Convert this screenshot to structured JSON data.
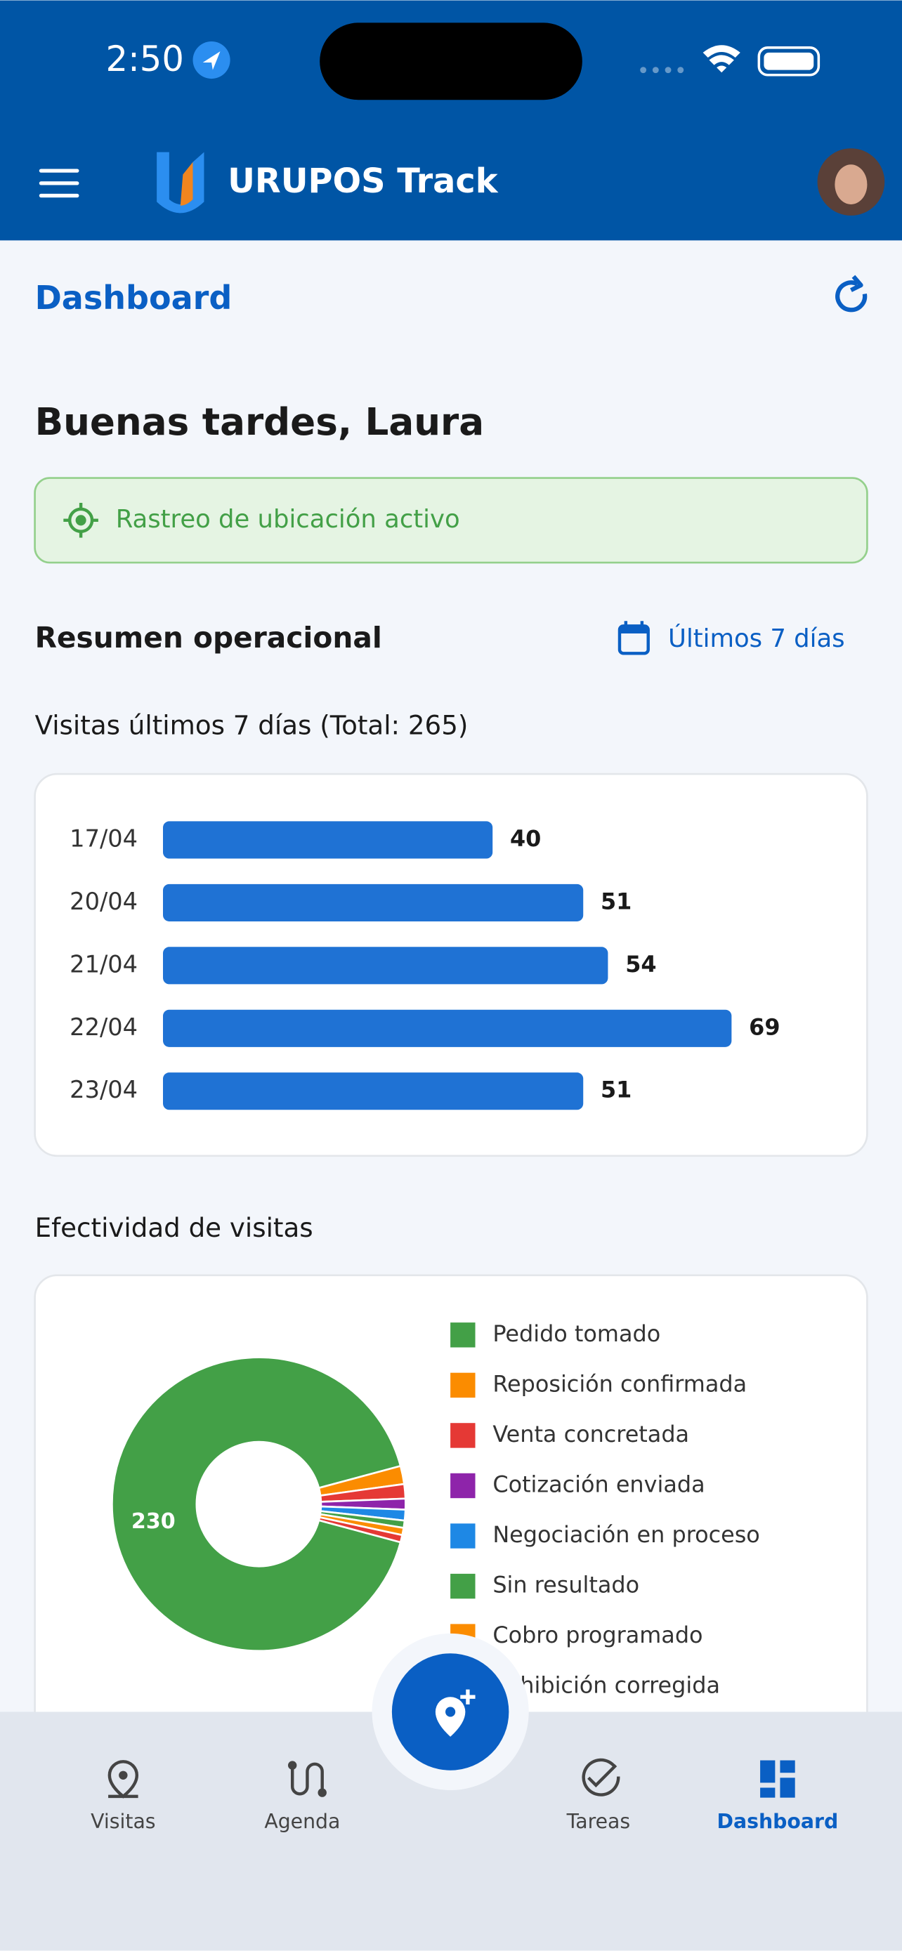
{
  "header": {
    "time": "2:50",
    "app_title": "URUPOS Track"
  },
  "page": {
    "title": "Dashboard",
    "greeting": "Buenas tardes, Laura",
    "tracking": "Rastreo de ubicación activo",
    "section_title": "Resumen operacional",
    "range": "Últimos 7 días"
  },
  "chart_data": [
    {
      "type": "bar",
      "title": "Visitas últimos 7 días (Total: 265)",
      "categories": [
        "17/04",
        "20/04",
        "21/04",
        "22/04",
        "23/04"
      ],
      "values": [
        40,
        51,
        54,
        69,
        51
      ],
      "color": "#1f72d4"
    },
    {
      "type": "pie",
      "title": "Efectividad de visitas",
      "categories": [
        "Pedido tomado",
        "Reposición confirmada",
        "Venta concretada",
        "Cotización enviada",
        "Negociación en proceso",
        "Sin resultado",
        "Cobro programado",
        "Exhibición corregida"
      ],
      "values": [
        230,
        5,
        4,
        3,
        3,
        2,
        2,
        2
      ],
      "colors": [
        "#43a047",
        "#fb8c00",
        "#e53935",
        "#8e24aa",
        "#1e88e5",
        "#43a047",
        "#fb8c00",
        "#e53935"
      ]
    }
  ],
  "nav": [
    "Visitas",
    "Agenda",
    "Tareas",
    "Dashboard"
  ]
}
